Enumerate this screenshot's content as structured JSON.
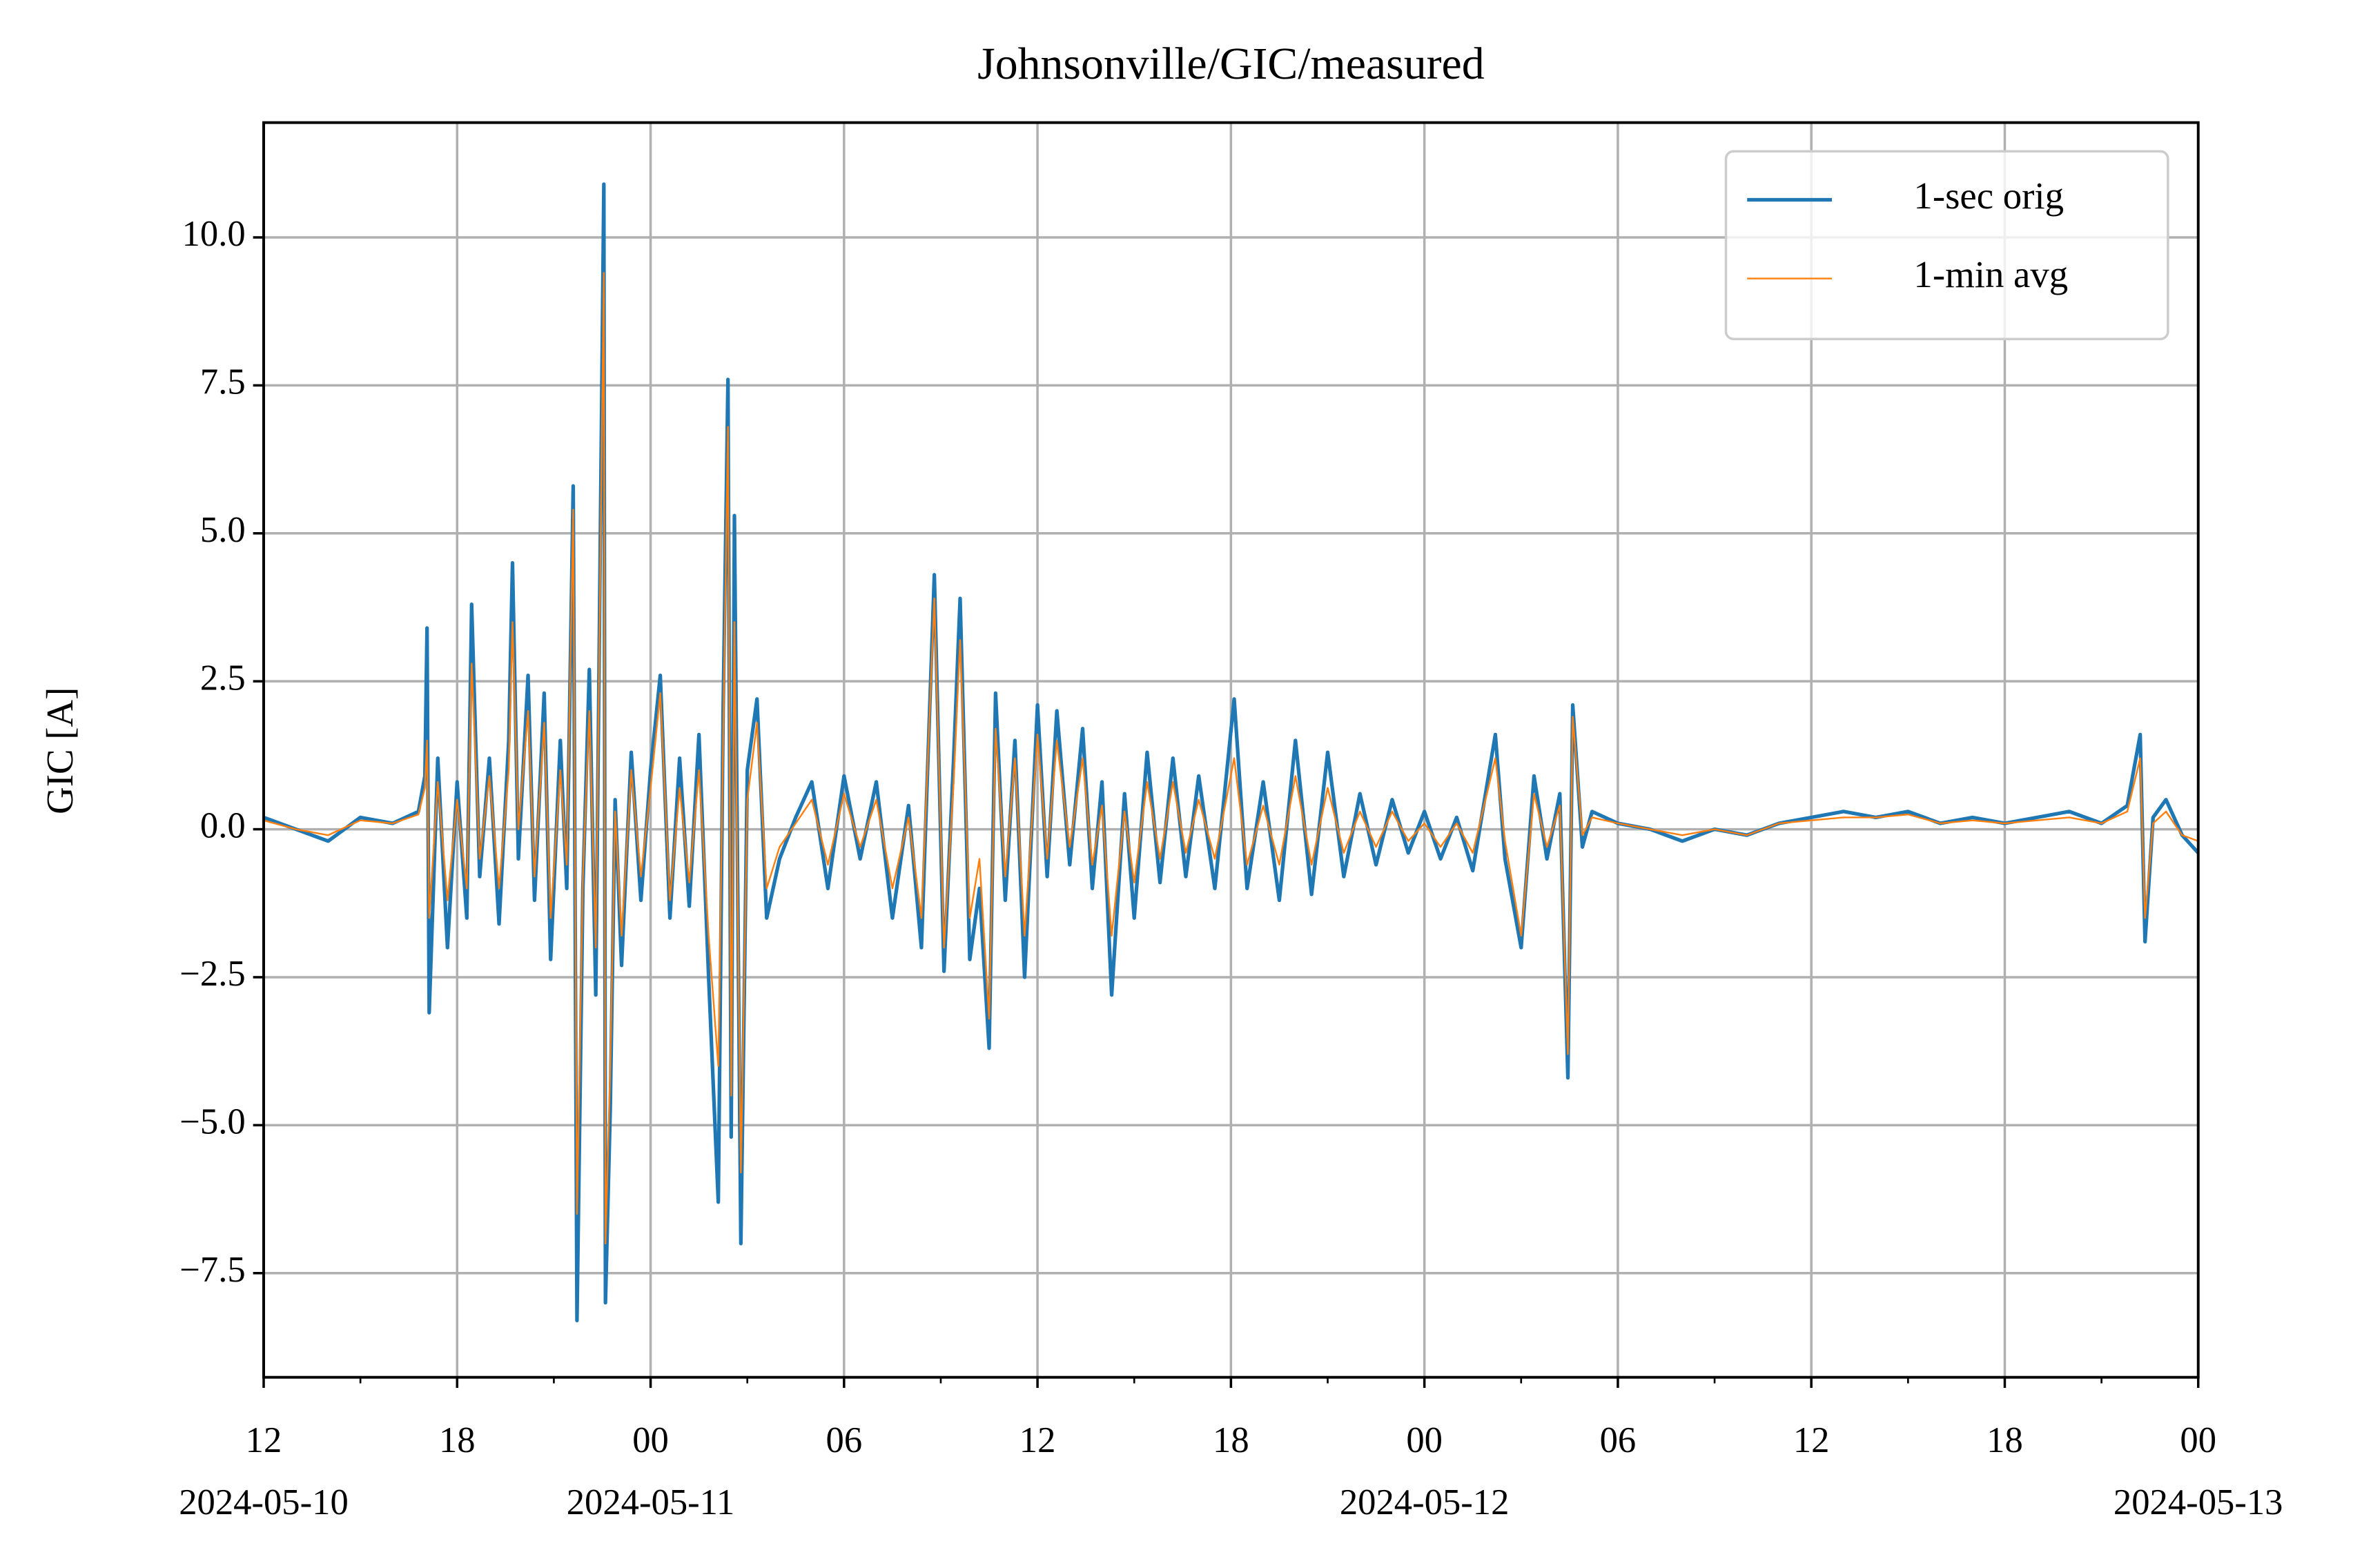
{
  "chart_data": {
    "type": "line",
    "title": "Johnsonville/GIC/measured",
    "y_label": "GIC [A]",
    "xlim": [
      "2024-05-10T12:00",
      "2024-05-13T00:00"
    ],
    "ylim": [
      -9.26,
      11.94
    ],
    "yticks": [
      {
        "value": -7.5,
        "label": "−7.5"
      },
      {
        "value": -5.0,
        "label": "−5.0"
      },
      {
        "value": -2.5,
        "label": "−2.5"
      },
      {
        "value": 0.0,
        "label": "0.0"
      },
      {
        "value": 2.5,
        "label": "2.5"
      },
      {
        "value": 5.0,
        "label": "5.0"
      },
      {
        "value": 7.5,
        "label": "7.5"
      },
      {
        "value": 10.0,
        "label": "10.0"
      }
    ],
    "xticks": [
      {
        "value": "2024-05-10T12:00",
        "label": "12"
      },
      {
        "value": "2024-05-10T18:00",
        "label": "18"
      },
      {
        "value": "2024-05-11T00:00",
        "label": "00"
      },
      {
        "value": "2024-05-11T06:00",
        "label": "06"
      },
      {
        "value": "2024-05-11T12:00",
        "label": "12"
      },
      {
        "value": "2024-05-11T18:00",
        "label": "18"
      },
      {
        "value": "2024-05-12T00:00",
        "label": "00"
      },
      {
        "value": "2024-05-12T06:00",
        "label": "06"
      },
      {
        "value": "2024-05-12T12:00",
        "label": "12"
      },
      {
        "value": "2024-05-12T18:00",
        "label": "18"
      },
      {
        "value": "2024-05-13T00:00",
        "label": "00"
      }
    ],
    "xticks_dates": [
      {
        "value": "2024-05-10T12:00",
        "label": "2024-05-10"
      },
      {
        "value": "2024-05-11T00:00",
        "label": "2024-05-11"
      },
      {
        "value": "2024-05-12T00:00",
        "label": "2024-05-12"
      },
      {
        "value": "2024-05-13T00:00",
        "label": "2024-05-13"
      }
    ],
    "xminorticks": [
      "2024-05-10T15:00",
      "2024-05-10T21:00",
      "2024-05-11T03:00",
      "2024-05-11T09:00",
      "2024-05-11T15:00",
      "2024-05-11T21:00",
      "2024-05-12T03:00",
      "2024-05-12T09:00",
      "2024-05-12T15:00",
      "2024-05-12T21:00"
    ],
    "grid": true,
    "legend": "upper right",
    "x": [
      "2024-05-10T12:00",
      "2024-05-10T13:00",
      "2024-05-10T14:00",
      "2024-05-10T15:00",
      "2024-05-10T16:00",
      "2024-05-10T16:48",
      "2024-05-10T17:00",
      "2024-05-10T17:04",
      "2024-05-10T17:08",
      "2024-05-10T17:24",
      "2024-05-10T17:42",
      "2024-05-10T18:00",
      "2024-05-10T18:18",
      "2024-05-10T18:27",
      "2024-05-10T18:42",
      "2024-05-10T19:00",
      "2024-05-10T19:18",
      "2024-05-10T19:36",
      "2024-05-10T19:43",
      "2024-05-10T19:54",
      "2024-05-10T20:12",
      "2024-05-10T20:24",
      "2024-05-10T20:42",
      "2024-05-10T20:54",
      "2024-05-10T21:12",
      "2024-05-10T21:24",
      "2024-05-10T21:36",
      "2024-05-10T21:43",
      "2024-05-10T21:54",
      "2024-05-10T22:06",
      "2024-05-10T22:18",
      "2024-05-10T22:33",
      "2024-05-10T22:36",
      "2024-05-10T22:45",
      "2024-05-10T22:54",
      "2024-05-10T23:06",
      "2024-05-10T23:24",
      "2024-05-10T23:42",
      "2024-05-11T00:00",
      "2024-05-11T00:18",
      "2024-05-11T00:36",
      "2024-05-11T00:54",
      "2024-05-11T01:12",
      "2024-05-11T01:30",
      "2024-05-11T01:48",
      "2024-05-11T02:06",
      "2024-05-11T02:15",
      "2024-05-11T02:24",
      "2024-05-11T02:30",
      "2024-05-11T02:36",
      "2024-05-11T02:48",
      "2024-05-11T03:00",
      "2024-05-11T03:18",
      "2024-05-11T03:36",
      "2024-05-11T04:00",
      "2024-05-11T04:30",
      "2024-05-11T05:00",
      "2024-05-11T05:30",
      "2024-05-11T06:00",
      "2024-05-11T06:30",
      "2024-05-11T07:00",
      "2024-05-11T07:30",
      "2024-05-11T08:00",
      "2024-05-11T08:24",
      "2024-05-11T08:48",
      "2024-05-11T09:06",
      "2024-05-11T09:24",
      "2024-05-11T09:36",
      "2024-05-11T09:54",
      "2024-05-11T10:12",
      "2024-05-11T10:30",
      "2024-05-11T10:42",
      "2024-05-11T11:00",
      "2024-05-11T11:18",
      "2024-05-11T11:36",
      "2024-05-11T12:00",
      "2024-05-11T12:18",
      "2024-05-11T12:36",
      "2024-05-11T13:00",
      "2024-05-11T13:24",
      "2024-05-11T13:42",
      "2024-05-11T14:00",
      "2024-05-11T14:18",
      "2024-05-11T14:42",
      "2024-05-11T15:00",
      "2024-05-11T15:24",
      "2024-05-11T15:48",
      "2024-05-11T16:12",
      "2024-05-11T16:36",
      "2024-05-11T17:00",
      "2024-05-11T17:30",
      "2024-05-11T18:06",
      "2024-05-11T18:30",
      "2024-05-11T19:00",
      "2024-05-11T19:30",
      "2024-05-11T20:00",
      "2024-05-11T20:30",
      "2024-05-11T21:00",
      "2024-05-11T21:30",
      "2024-05-11T22:00",
      "2024-05-11T22:30",
      "2024-05-11T23:00",
      "2024-05-11T23:30",
      "2024-05-12T00:00",
      "2024-05-12T00:30",
      "2024-05-12T01:00",
      "2024-05-12T01:30",
      "2024-05-12T02:12",
      "2024-05-12T02:30",
      "2024-05-12T03:00",
      "2024-05-12T03:24",
      "2024-05-12T03:48",
      "2024-05-12T04:12",
      "2024-05-12T04:27",
      "2024-05-12T04:36",
      "2024-05-12T04:54",
      "2024-05-12T05:12",
      "2024-05-12T06:00",
      "2024-05-12T07:00",
      "2024-05-12T08:00",
      "2024-05-12T09:00",
      "2024-05-12T10:00",
      "2024-05-12T11:00",
      "2024-05-12T12:00",
      "2024-05-12T13:00",
      "2024-05-12T14:00",
      "2024-05-12T15:00",
      "2024-05-12T16:00",
      "2024-05-12T17:00",
      "2024-05-12T18:00",
      "2024-05-12T19:00",
      "2024-05-12T20:00",
      "2024-05-12T21:00",
      "2024-05-12T21:48",
      "2024-05-12T22:12",
      "2024-05-12T22:21",
      "2024-05-12T22:36",
      "2024-05-12T23:00",
      "2024-05-12T23:30",
      "2024-05-13T00:00"
    ],
    "series": [
      {
        "name": "1-sec orig",
        "color": "#1f77b4",
        "values": [
          0.2,
          0.0,
          -0.2,
          0.2,
          0.1,
          0.3,
          0.9,
          3.4,
          -3.1,
          1.2,
          -2.0,
          0.8,
          -1.5,
          3.8,
          -0.8,
          1.2,
          -1.6,
          1.5,
          4.5,
          -0.5,
          2.6,
          -1.2,
          2.3,
          -2.2,
          1.5,
          -1.0,
          5.8,
          -8.3,
          -1.0,
          2.7,
          -2.8,
          10.9,
          -8.0,
          -4.7,
          0.5,
          -2.3,
          1.3,
          -1.2,
          1.0,
          2.6,
          -1.5,
          1.2,
          -1.3,
          1.6,
          -2.5,
          -6.3,
          2.0,
          7.6,
          -5.2,
          5.3,
          -7.0,
          1.0,
          2.2,
          -1.5,
          -0.5,
          0.2,
          0.8,
          -1.0,
          0.9,
          -0.5,
          0.8,
          -1.5,
          0.4,
          -2.0,
          4.3,
          -2.4,
          1.2,
          3.9,
          -2.2,
          -1.0,
          -3.7,
          2.3,
          -1.2,
          1.5,
          -2.5,
          2.1,
          -0.8,
          2.0,
          -0.6,
          1.7,
          -1.0,
          0.8,
          -2.8,
          0.6,
          -1.5,
          1.3,
          -0.9,
          1.2,
          -0.8,
          0.9,
          -1.0,
          2.2,
          -1.0,
          0.8,
          -1.2,
          1.5,
          -1.1,
          1.3,
          -0.8,
          0.6,
          -0.6,
          0.5,
          -0.4,
          0.3,
          -0.5,
          0.2,
          -0.7,
          1.6,
          -0.5,
          -2.0,
          0.9,
          -0.5,
          0.6,
          -4.2,
          2.1,
          -0.3,
          0.3,
          0.1,
          0.0,
          -0.2,
          0.0,
          -0.1,
          0.1,
          0.2,
          0.3,
          0.2,
          0.3,
          0.1,
          0.2,
          0.1,
          0.2,
          0.3,
          0.1,
          0.4,
          1.6,
          -1.9,
          0.2,
          0.5,
          -0.1,
          -0.4
        ]
      },
      {
        "name": "1-min avg",
        "color": "#ff7f0e",
        "values": [
          0.15,
          0.0,
          -0.1,
          0.15,
          0.1,
          0.25,
          0.7,
          1.5,
          -1.5,
          0.8,
          -1.2,
          0.5,
          -1.0,
          2.8,
          -0.5,
          0.9,
          -1.0,
          1.0,
          3.5,
          0.0,
          2.0,
          -0.8,
          1.8,
          -1.5,
          1.0,
          -0.6,
          5.4,
          -6.5,
          -0.8,
          2.0,
          -2.0,
          9.4,
          -7.0,
          -4.0,
          0.3,
          -1.8,
          1.0,
          -0.8,
          0.7,
          2.3,
          -1.2,
          0.7,
          -0.9,
          1.0,
          -1.8,
          -4.0,
          1.5,
          6.8,
          -4.5,
          3.5,
          -5.8,
          0.5,
          1.8,
          -1.0,
          -0.3,
          0.1,
          0.5,
          -0.6,
          0.6,
          -0.3,
          0.5,
          -1.0,
          0.2,
          -1.5,
          3.9,
          -2.0,
          0.8,
          3.2,
          -1.5,
          -0.5,
          -3.2,
          1.7,
          -0.8,
          1.2,
          -1.8,
          1.6,
          -0.5,
          1.5,
          -0.3,
          1.2,
          -0.6,
          0.4,
          -1.8,
          0.3,
          -0.9,
          0.8,
          -0.5,
          0.8,
          -0.4,
          0.5,
          -0.5,
          1.2,
          -0.6,
          0.4,
          -0.6,
          0.9,
          -0.6,
          0.7,
          -0.4,
          0.3,
          -0.3,
          0.3,
          -0.2,
          0.1,
          -0.3,
          0.1,
          -0.4,
          1.2,
          -0.2,
          -1.8,
          0.6,
          -0.3,
          0.4,
          -3.8,
          1.9,
          -0.1,
          0.2,
          0.1,
          0.0,
          -0.1,
          0.0,
          -0.1,
          0.1,
          0.15,
          0.2,
          0.2,
          0.25,
          0.1,
          0.15,
          0.1,
          0.15,
          0.2,
          0.1,
          0.3,
          1.2,
          -1.5,
          0.1,
          0.3,
          -0.1,
          -0.2
        ]
      }
    ]
  }
}
